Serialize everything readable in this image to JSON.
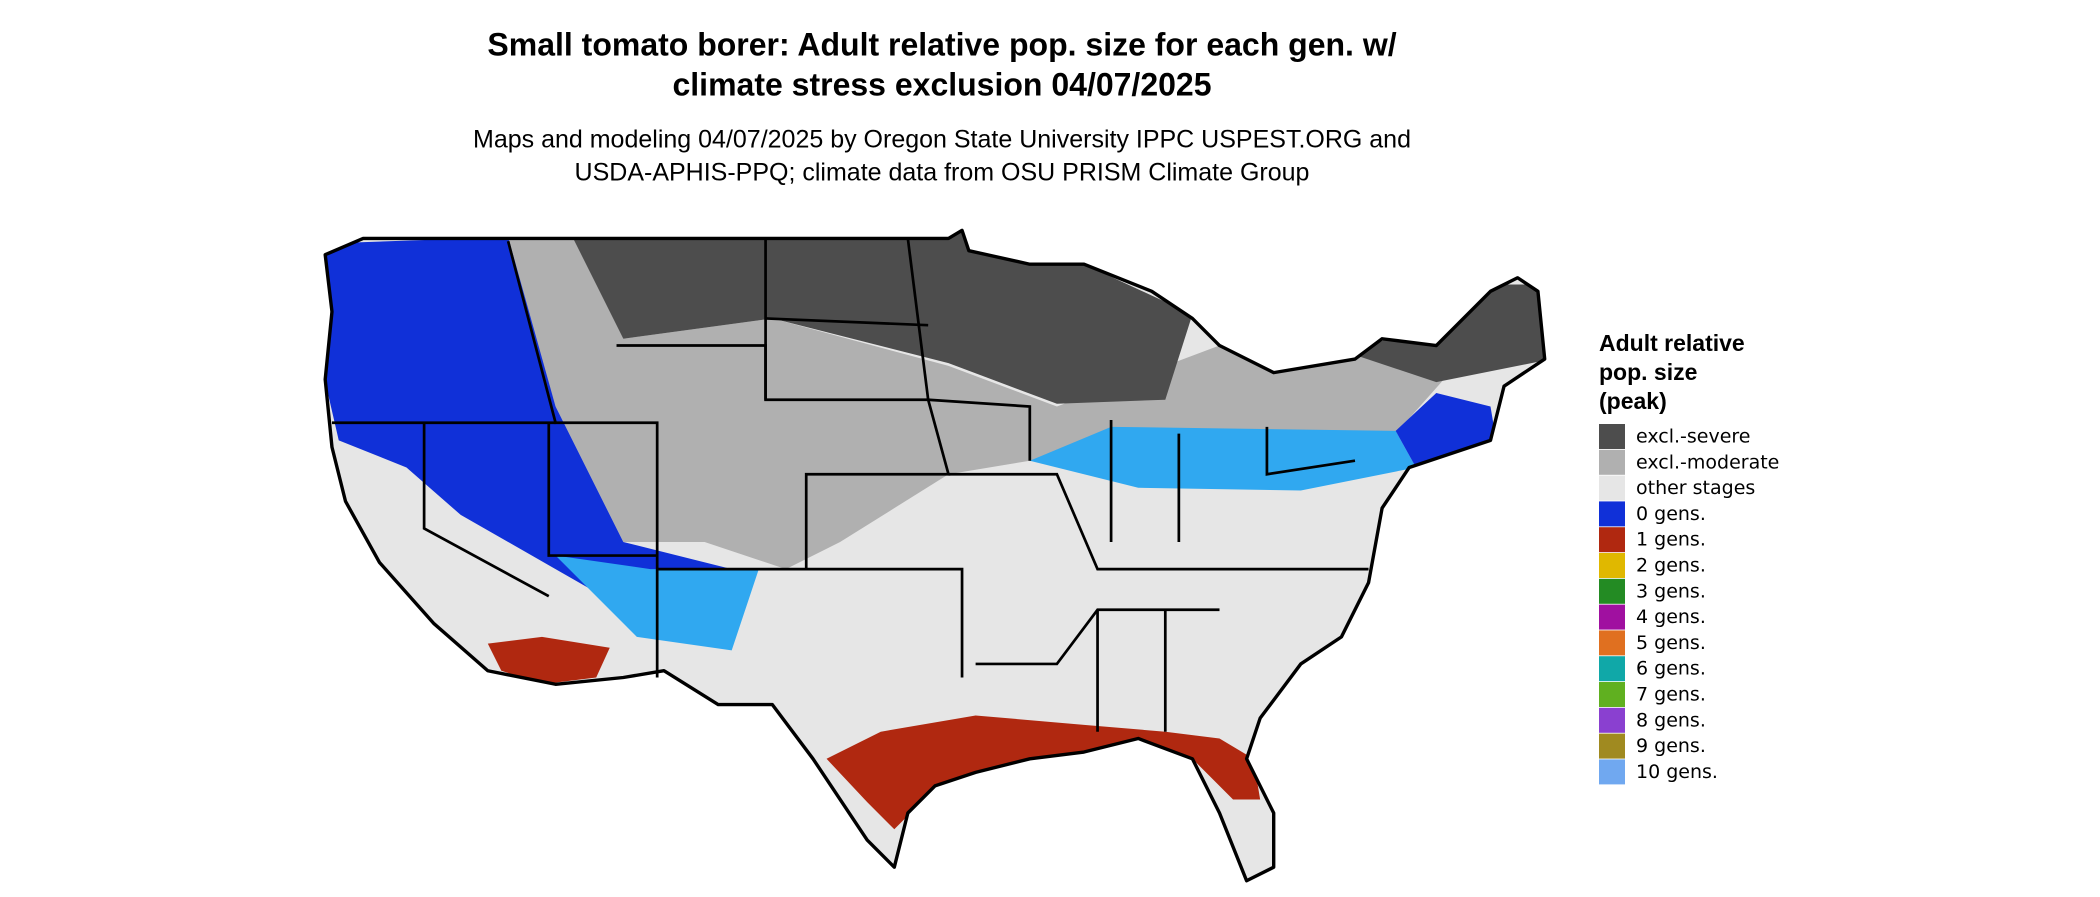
{
  "header": {
    "title_lines": [
      "Small tomato borer: Adult relative pop. size for each gen. w/",
      "climate stress exclusion 04/07/2025"
    ],
    "subtitle_lines": [
      "Maps and modeling 04/07/2025 by Oregon State University IPPC USPEST.ORG and",
      "USDA-APHIS-PPQ; climate data from OSU PRISM Climate Group"
    ]
  },
  "legend": {
    "title_lines": [
      "Adult relative",
      "pop. size",
      "(peak)"
    ],
    "items": [
      {
        "label": "excl.-severe",
        "color": "#4d4d4d"
      },
      {
        "label": "excl.-moderate",
        "color": "#b0b0b0"
      },
      {
        "label": "other stages",
        "color": "#e6e6e6"
      },
      {
        "label": "0 gens.",
        "color": "#1030d8"
      },
      {
        "label": "1 gens.",
        "color": "#b02810"
      },
      {
        "label": "2 gens.",
        "color": "#e0b800"
      },
      {
        "label": "3 gens.",
        "color": "#238b23"
      },
      {
        "label": "4 gens.",
        "color": "#a010a0"
      },
      {
        "label": "5 gens.",
        "color": "#e07020"
      },
      {
        "label": "6 gens.",
        "color": "#10a8a8"
      },
      {
        "label": "7 gens.",
        "color": "#60b020"
      },
      {
        "label": "8 gens.",
        "color": "#8a40d0"
      },
      {
        "label": "9 gens.",
        "color": "#a08a20"
      },
      {
        "label": "10 gens.",
        "color": "#70a8f0"
      }
    ]
  }
}
